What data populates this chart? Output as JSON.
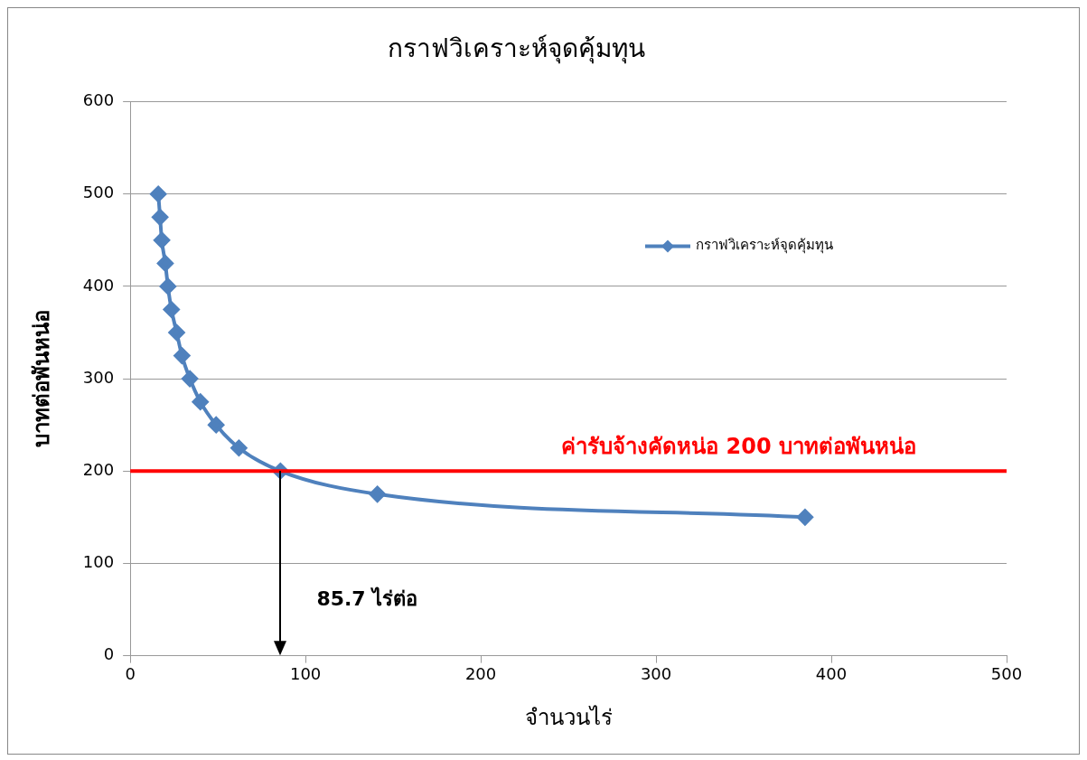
{
  "chart_data": {
    "type": "line",
    "title": "กราฟวิเคราะห์จุดคุ้มทุน",
    "xlabel": "จำนวนไร่",
    "ylabel": "บาทต่อพันหน่อ",
    "series": [
      {
        "name": "กราฟวิเคราะห์จุดคุ้มทุน",
        "color": "#4f81bd",
        "x": [
          16,
          17,
          18,
          20,
          21.5,
          23.5,
          26.5,
          29.5,
          34,
          40,
          49,
          62,
          85.7,
          141,
          385
        ],
        "values": [
          500,
          475,
          450,
          425,
          400,
          375,
          350,
          325,
          300,
          275,
          250,
          225,
          200,
          175,
          150
        ]
      }
    ],
    "xlim": [
      0,
      500
    ],
    "xticks": [
      0,
      100,
      200,
      300,
      400,
      500
    ],
    "ylim": [
      0,
      600
    ],
    "yticks": [
      0,
      100,
      200,
      300,
      400,
      500,
      600
    ],
    "grid": "y",
    "legend": "top right",
    "marker": "diamond",
    "line_style": "solid",
    "ref_lines": [
      {
        "axis": "y",
        "value": 200,
        "label": "ค่ารับจ้างคัดหน่อ 200 บาทต่อพันหน่อ",
        "color": "#ff0000"
      }
    ],
    "annotations": [
      "85.7 ไร่ต่อ"
    ]
  }
}
